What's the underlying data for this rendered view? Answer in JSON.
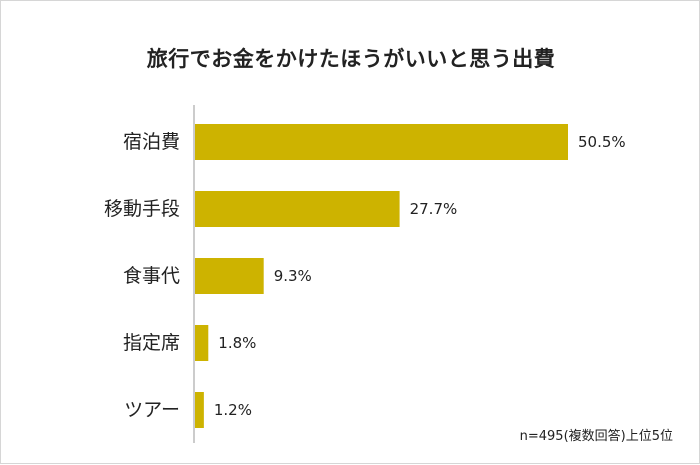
{
  "colors": {
    "bar": "#cdb300",
    "axis": "#bbbbbb",
    "text": "#222222"
  },
  "chart_data": {
    "type": "bar",
    "orientation": "horizontal",
    "title": "旅行でお金をかけたほうがいいと思う出費",
    "categories": [
      "宿泊費",
      "移動手段",
      "食事代",
      "指定席",
      "ツアー"
    ],
    "values": [
      50.5,
      27.7,
      9.3,
      1.8,
      1.2
    ],
    "value_labels": [
      "50.5%",
      "27.7%",
      "9.3%",
      "1.8%",
      "1.2%"
    ],
    "unit": "%",
    "xlim": [
      0,
      50.5
    ],
    "grid": false,
    "legend": "none"
  },
  "footnote": "n=495(複数回答)上位5位"
}
